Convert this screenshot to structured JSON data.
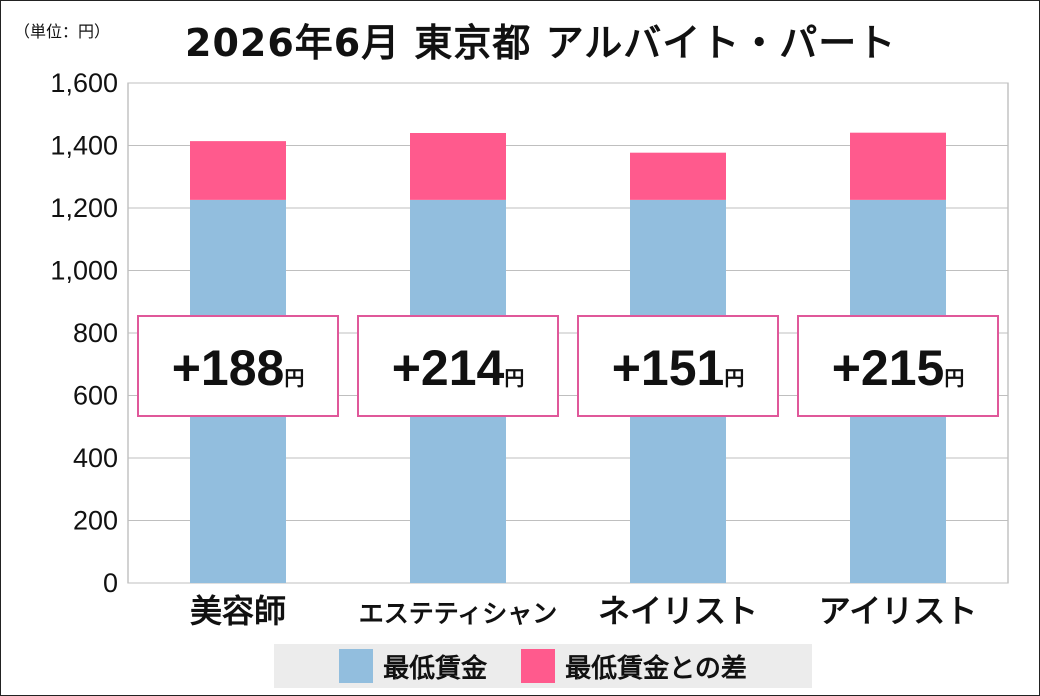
{
  "unit_label": "（単位：円）",
  "title": "2026年6月 東京都 アルバイト・パート",
  "colors": {
    "base": "#92bede",
    "diff": "#ff5a8d",
    "box_border": "#e0589a",
    "grid": "#bfbfbf"
  },
  "chart_data": {
    "type": "bar",
    "stacked": true,
    "categories": [
      "美容師",
      "エステティシャン",
      "ネイリスト",
      "アイリスト"
    ],
    "series": [
      {
        "name": "最低賃金",
        "values": [
          1226,
          1226,
          1226,
          1226
        ]
      },
      {
        "name": "最低賃金との差",
        "values": [
          188,
          214,
          151,
          215
        ]
      }
    ],
    "annotations": [
      "+188",
      "+214",
      "+151",
      "+215"
    ],
    "annotation_unit": "円",
    "ylim": [
      0,
      1600
    ],
    "yticks": [
      0,
      200,
      400,
      600,
      800,
      1000,
      1200,
      1400,
      1600
    ],
    "ytick_labels": [
      "0",
      "200",
      "400",
      "600",
      "800",
      "1,000",
      "1,200",
      "1,400",
      "1,600"
    ],
    "grid": true,
    "legend_position": "bottom"
  }
}
